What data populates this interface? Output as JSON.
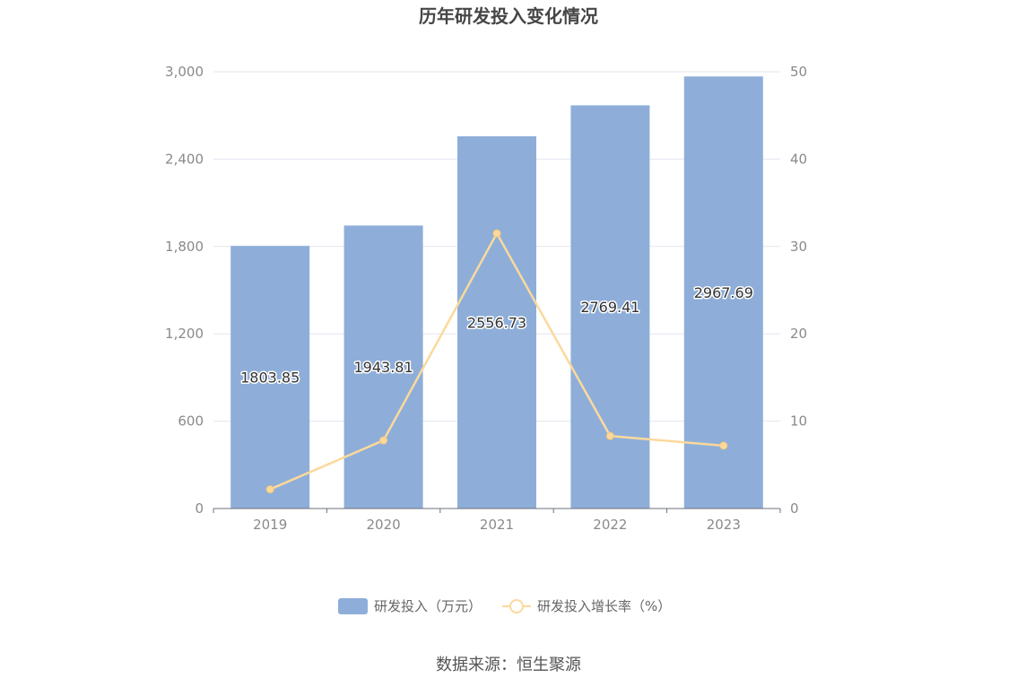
{
  "chart_data": {
    "type": "bar",
    "title": "历年研发投入变化情况",
    "categories": [
      "2019",
      "2020",
      "2021",
      "2022",
      "2023"
    ],
    "series": [
      {
        "name": "研发投入（万元）",
        "type": "bar",
        "axis": "left",
        "values": [
          1803.85,
          1943.81,
          2556.73,
          2769.41,
          2967.69
        ],
        "data_labels": [
          "1803.85",
          "1943.81",
          "2556.73",
          "2769.41",
          "2967.69"
        ],
        "color": "#8eaed9"
      },
      {
        "name": "研发投入增长率（%）",
        "type": "line",
        "axis": "right",
        "values": [
          2.2,
          7.8,
          31.5,
          8.3,
          7.2
        ],
        "color": "#fbd99c"
      }
    ],
    "y_left": {
      "min": 0,
      "max": 3000,
      "ticks": [
        0,
        600,
        1200,
        1800,
        2400,
        3000
      ],
      "tick_labels": [
        "0",
        "600",
        "1,200",
        "1,800",
        "2,400",
        "3,000"
      ]
    },
    "y_right": {
      "min": 0,
      "max": 50,
      "ticks": [
        0,
        10,
        20,
        30,
        40,
        50
      ],
      "tick_labels": [
        "0",
        "10",
        "20",
        "30",
        "40",
        "50"
      ]
    },
    "grid": true,
    "legend_position": "bottom"
  },
  "source": "数据来源：恒生聚源"
}
